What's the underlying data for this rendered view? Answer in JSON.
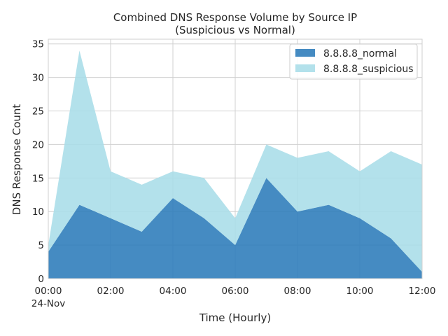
{
  "chart_data": {
    "type": "area",
    "stacked": true,
    "title": [
      "Combined DNS Response Volume by Source IP",
      "(Suspicious vs Normal)"
    ],
    "xlabel": "Time (Hourly)",
    "ylabel": "DNS Response Count",
    "x": [
      "2024-11-24 00:00",
      "2024-11-24 01:00",
      "2024-11-24 02:00",
      "2024-11-24 03:00",
      "2024-11-24 04:00",
      "2024-11-24 05:00",
      "2024-11-24 06:00",
      "2024-11-24 07:00",
      "2024-11-24 08:00",
      "2024-11-24 09:00",
      "2024-11-24 10:00",
      "2024-11-24 11:00",
      "2024-11-24 12:00"
    ],
    "x_ticks": [
      {
        "x": "2024-11-24 00:00",
        "label": "00:00",
        "sublabel": "24-Nov"
      },
      {
        "x": "2024-11-24 02:00",
        "label": "02:00"
      },
      {
        "x": "2024-11-24 04:00",
        "label": "04:00"
      },
      {
        "x": "2024-11-24 06:00",
        "label": "06:00"
      },
      {
        "x": "2024-11-24 08:00",
        "label": "08:00"
      },
      {
        "x": "2024-11-24 10:00",
        "label": "10:00"
      },
      {
        "x": "2024-11-24 12:00",
        "label": "12:00"
      }
    ],
    "y_ticks": [
      0,
      5,
      10,
      15,
      20,
      25,
      30,
      35
    ],
    "ylim": [
      0,
      35.7
    ],
    "grid": true,
    "legend_position": "top-right",
    "series": [
      {
        "name": "8.8.8.8_normal",
        "color": "#2b7bba",
        "values": [
          4,
          11,
          9,
          7,
          12,
          9,
          5,
          15,
          10,
          11,
          9,
          6,
          1
        ]
      },
      {
        "name": "8.8.8.8_suspicious",
        "color": "#a8dde8",
        "values": [
          1,
          23,
          7,
          7,
          4,
          6,
          4,
          5,
          8,
          8,
          7,
          13,
          16
        ]
      }
    ]
  }
}
